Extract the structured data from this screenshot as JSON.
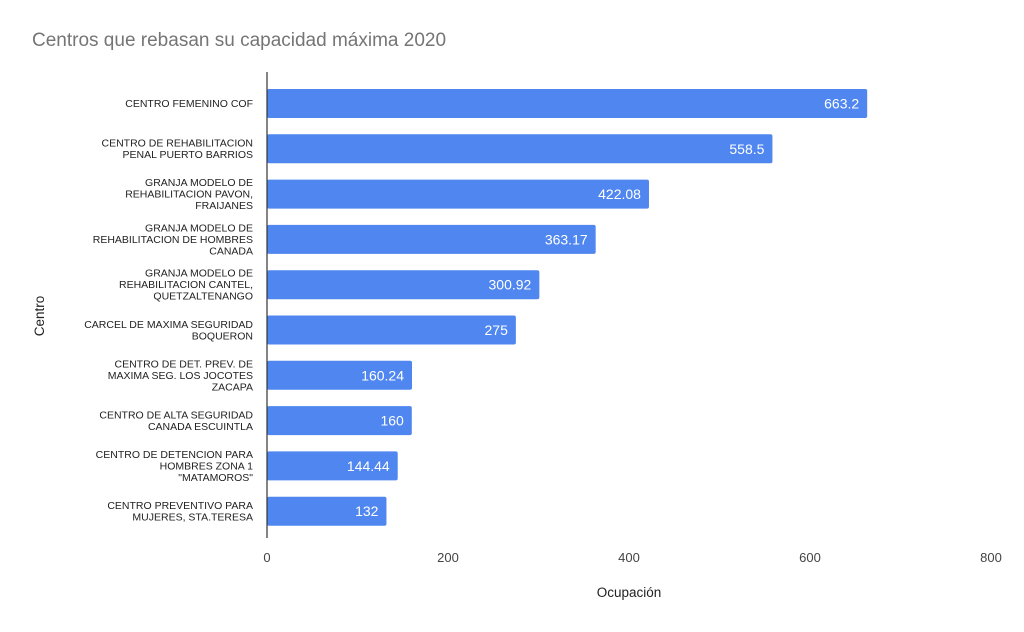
{
  "chart_data": {
    "type": "bar",
    "orientation": "horizontal",
    "title": "Centros que rebasan su capacidad máxima 2020",
    "xlabel": "Ocupación",
    "ylabel": "Centro",
    "xlim": [
      0,
      800
    ],
    "xticks": [
      "0",
      "200",
      "400",
      "600",
      "800"
    ],
    "grid": false,
    "bar_color": "#4f86f0",
    "categories": [
      [
        "CENTRO FEMENINO COF"
      ],
      [
        "CENTRO DE REHABILITACION",
        "PENAL PUERTO BARRIOS"
      ],
      [
        "GRANJA MODELO DE",
        "REHABILITACION PAVON,",
        "FRAIJANES"
      ],
      [
        "GRANJA MODELO DE",
        "REHABILITACION DE HOMBRES",
        "CANADA"
      ],
      [
        "GRANJA MODELO DE",
        "REHABILITACION CANTEL,",
        "QUETZALTENANGO"
      ],
      [
        "CARCEL DE MAXIMA SEGURIDAD",
        "BOQUERON"
      ],
      [
        "CENTRO DE DET. PREV. DE",
        "MAXIMA SEG. LOS JOCOTES",
        "ZACAPA"
      ],
      [
        "CENTRO DE ALTA SEGURIDAD",
        "CANADA ESCUINTLA"
      ],
      [
        "CENTRO DE DETENCION PARA",
        "HOMBRES ZONA 1",
        "\"MATAMOROS\""
      ],
      [
        "CENTRO PREVENTIVO PARA",
        "MUJERES, STA.TERESA"
      ]
    ],
    "values": [
      663.2,
      558.5,
      422.08,
      363.17,
      300.92,
      275,
      160.24,
      160,
      144.44,
      132
    ],
    "value_labels": [
      "663.2",
      "558.5",
      "422.08",
      "363.17",
      "300.92",
      "275",
      "160.24",
      "160",
      "144.44",
      "132"
    ]
  }
}
